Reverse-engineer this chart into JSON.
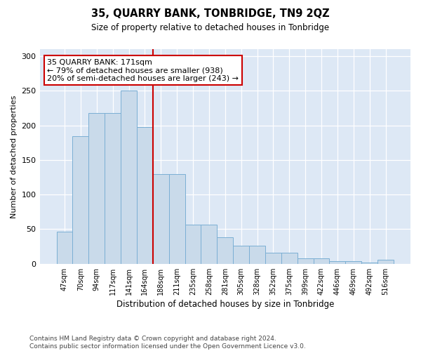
{
  "title": "35, QUARRY BANK, TONBRIDGE, TN9 2QZ",
  "subtitle": "Size of property relative to detached houses in Tonbridge",
  "xlabel": "Distribution of detached houses by size in Tonbridge",
  "ylabel": "Number of detached properties",
  "categories": [
    "47sqm",
    "70sqm",
    "94sqm",
    "117sqm",
    "141sqm",
    "164sqm",
    "188sqm",
    "211sqm",
    "235sqm",
    "258sqm",
    "281sqm",
    "305sqm",
    "328sqm",
    "352sqm",
    "375sqm",
    "399sqm",
    "422sqm",
    "446sqm",
    "469sqm",
    "492sqm",
    "516sqm"
  ],
  "bar_heights": [
    46,
    184,
    218,
    218,
    250,
    197,
    130,
    130,
    57,
    57,
    38,
    26,
    26,
    16,
    16,
    8,
    8,
    4,
    4,
    2,
    6
  ],
  "bar_color": "#c9daea",
  "bar_edge_color": "#7bafd4",
  "vline_x": 5.5,
  "vline_color": "#cc0000",
  "annotation_text": "35 QUARRY BANK: 171sqm\n← 79% of detached houses are smaller (938)\n20% of semi-detached houses are larger (243) →",
  "annotation_box_edge_color": "#cc0000",
  "plot_bg_color": "#dde8f5",
  "grid_color": "#ffffff",
  "ylim": [
    0,
    310
  ],
  "yticks": [
    0,
    50,
    100,
    150,
    200,
    250,
    300
  ],
  "footnote_line1": "Contains HM Land Registry data © Crown copyright and database right 2024.",
  "footnote_line2": "Contains public sector information licensed under the Open Government Licence v3.0."
}
